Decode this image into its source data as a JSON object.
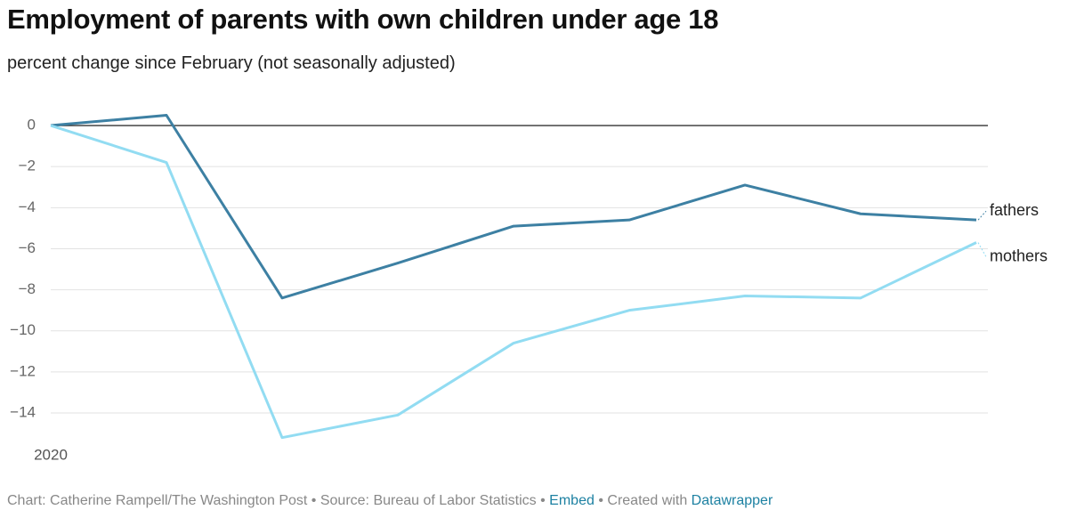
{
  "chart_data": {
    "type": "line",
    "title": "Employment of parents with own children under age 18",
    "subtitle": "percent change since February (not seasonally adjusted)",
    "categories": [
      "2020",
      null,
      null,
      null,
      null,
      null,
      null,
      null,
      null
    ],
    "series": [
      {
        "name": "fathers",
        "color": "#3d80a3",
        "values": [
          0,
          0.5,
          -8.4,
          -6.7,
          -4.9,
          -4.6,
          -2.9,
          -4.3,
          -4.6
        ]
      },
      {
        "name": "mothers",
        "color": "#92dcf2",
        "values": [
          0,
          -1.8,
          -15.2,
          -14.1,
          -10.6,
          -9.0,
          -8.3,
          -8.4,
          -5.7
        ]
      }
    ],
    "ylim": [
      -15.4,
      0.6
    ],
    "yticks": [
      0,
      {
        "value": -2,
        "label": "−2"
      },
      {
        "value": -4,
        "label": "−4"
      },
      {
        "value": -6,
        "label": "−6"
      },
      {
        "value": -8,
        "label": "−8"
      },
      {
        "value": -10,
        "label": "−10"
      },
      {
        "value": -12,
        "label": "−12"
      },
      {
        "value": -14,
        "label": "−14"
      }
    ],
    "grid": true
  },
  "footer": {
    "credit": "Chart: Catherine Rampell/The Washington Post",
    "separator": "•",
    "source": "Source: Bureau of Labor Statistics",
    "embed": "Embed",
    "created": "Created with",
    "tool": "Datawrapper"
  }
}
